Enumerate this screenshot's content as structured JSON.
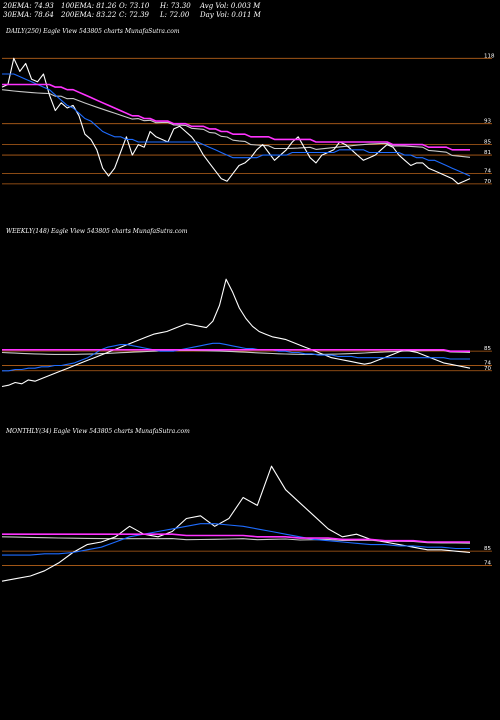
{
  "stats": {
    "ema20": "20EMA: 74.93",
    "ema100": "100EMA: 81.26",
    "open": "O: 73.10",
    "high": "H: 73.30",
    "avgvol": "Avg Vol: 0.003 M",
    "ema30": "30EMA: 78.64",
    "ema200": "200EMA: 83.22",
    "close": "C: 72.39",
    "low": "L: 72.00",
    "dayvol": "Day Vol: 0.011 M"
  },
  "colors": {
    "price": "#ffffff",
    "ema_short": "#1e6cff",
    "ema_long": "#ff33ff",
    "ema_mid": "#c8c8c8",
    "levels": "#b8621a"
  },
  "chart_data": [
    {
      "type": "line",
      "title": "DAILY(250) Eagle  View  543805 charts MunafaSutra.com",
      "y_ticks": [
        "118",
        "93",
        "85",
        "81",
        "74",
        "70"
      ],
      "series": [
        {
          "values": [
            107,
            108,
            118,
            113,
            116,
            110,
            109,
            112,
            104,
            98,
            101,
            99,
            100,
            96,
            89,
            87,
            83,
            76,
            73,
            76,
            82,
            88,
            81,
            85,
            84,
            90,
            88,
            87,
            86,
            91,
            92,
            90,
            88,
            85,
            81,
            78,
            75,
            72,
            71,
            74,
            77,
            78,
            80,
            83,
            85,
            82,
            79,
            81,
            83,
            86,
            88,
            84,
            80,
            78,
            81,
            82,
            83,
            86,
            85,
            83,
            81,
            79,
            80,
            81,
            83,
            85,
            84,
            81,
            79,
            77,
            78,
            78,
            76,
            75,
            74,
            73,
            72,
            70,
            71,
            72
          ]
        },
        {
          "values": [
            112,
            112,
            112,
            111,
            110,
            109,
            108,
            107,
            106,
            104,
            102,
            100,
            99,
            97,
            95,
            94,
            92,
            90,
            89,
            88,
            88,
            87,
            87,
            86,
            86,
            86,
            86,
            86,
            86,
            86,
            86,
            86,
            86,
            86,
            85,
            84,
            83,
            82,
            81,
            80,
            80,
            80,
            80,
            80,
            81,
            81,
            81,
            81,
            81,
            82,
            82,
            82,
            82,
            82,
            82,
            82,
            82,
            83,
            83,
            83,
            83,
            83,
            82,
            82,
            82,
            82,
            82,
            82,
            81,
            81,
            80,
            80,
            79,
            79,
            78,
            77,
            76,
            75,
            74,
            73
          ]
        },
        {
          "values": [
            108,
            108,
            108,
            108,
            108,
            108,
            108,
            108,
            108,
            107,
            107,
            106,
            106,
            105,
            104,
            103,
            102,
            101,
            100,
            99,
            98,
            97,
            96,
            96,
            95,
            95,
            94,
            94,
            94,
            93,
            93,
            93,
            92,
            92,
            92,
            91,
            91,
            90,
            90,
            89,
            89,
            89,
            88,
            88,
            88,
            88,
            87,
            87,
            87,
            87,
            87,
            87,
            87,
            86,
            86,
            86,
            86,
            86,
            86,
            86,
            86,
            86,
            86,
            86,
            86,
            86,
            85,
            85,
            85,
            85,
            85,
            85,
            84,
            84,
            84,
            84,
            83,
            83,
            83,
            83
          ]
        }
      ]
    },
    {
      "type": "line",
      "title": "WEEKLY(148) Eagle  View  543805 charts MunafaSutra.com",
      "y_ticks": [
        "85",
        "74",
        "70"
      ],
      "series": [
        {
          "values": [
            58,
            59,
            61,
            60,
            63,
            62,
            64,
            66,
            68,
            70,
            72,
            74,
            76,
            78,
            80,
            82,
            84,
            86,
            88,
            90,
            92,
            94,
            96,
            98,
            99,
            100,
            102,
            104,
            106,
            105,
            104,
            103,
            108,
            120,
            140,
            130,
            118,
            110,
            104,
            100,
            98,
            96,
            95,
            94,
            92,
            90,
            88,
            86,
            84,
            82,
            80,
            79,
            78,
            77,
            76,
            75,
            76,
            78,
            80,
            82,
            84,
            86,
            85,
            84,
            82,
            80,
            78,
            76,
            75,
            74,
            73,
            72
          ]
        },
        {
          "values": [
            70,
            70,
            71,
            71,
            72,
            72,
            73,
            73,
            74,
            74,
            75,
            76,
            78,
            80,
            83,
            86,
            88,
            89,
            90,
            90,
            89,
            88,
            87,
            86,
            85,
            85,
            85,
            86,
            87,
            88,
            89,
            90,
            91,
            91,
            90,
            89,
            88,
            87,
            87,
            86,
            86,
            86,
            85,
            85,
            84,
            84,
            83,
            83,
            82,
            82,
            82,
            81,
            81,
            81,
            80,
            80,
            80,
            80,
            80,
            80,
            80,
            80,
            80,
            80,
            80,
            80,
            80,
            80,
            79,
            79,
            79,
            79
          ]
        },
        {
          "values": [
            86,
            86,
            86,
            86,
            86,
            86,
            86,
            86,
            86,
            86,
            86,
            86,
            86,
            86,
            86,
            86,
            86,
            86,
            86,
            86,
            86,
            86,
            86,
            86,
            86,
            86,
            86,
            86,
            86,
            86,
            86,
            86,
            86,
            86,
            86,
            86,
            86,
            86,
            86,
            86,
            86,
            86,
            86,
            86,
            86,
            86,
            86,
            86,
            86,
            86,
            86,
            86,
            86,
            86,
            86,
            86,
            86,
            86,
            86,
            86,
            86,
            86,
            86,
            86,
            86,
            86,
            86,
            86,
            85,
            85,
            85,
            85
          ]
        }
      ]
    },
    {
      "type": "line",
      "title": "MONTHLY(34) Eagle  View  543805 charts MunafaSutra.com",
      "y_ticks": [
        "85",
        "74"
      ],
      "series": [
        {
          "values": [
            62,
            64,
            66,
            70,
            76,
            84,
            90,
            92,
            96,
            104,
            98,
            96,
            100,
            110,
            112,
            104,
            110,
            126,
            120,
            150,
            132,
            122,
            112,
            102,
            96,
            98,
            94,
            92,
            90,
            88,
            86,
            86,
            85,
            84
          ]
        },
        {
          "values": [
            82,
            82,
            82,
            83,
            83,
            84,
            86,
            88,
            92,
            96,
            98,
            100,
            102,
            104,
            106,
            106,
            105,
            104,
            102,
            100,
            98,
            96,
            94,
            93,
            92,
            91,
            90,
            90,
            89,
            89,
            88,
            88,
            87,
            87
          ]
        },
        {
          "values": [
            98,
            98,
            98,
            98,
            98,
            98,
            98,
            98,
            98,
            98,
            98,
            98,
            98,
            97,
            97,
            97,
            97,
            97,
            96,
            96,
            96,
            95,
            95,
            95,
            94,
            94,
            94,
            93,
            93,
            93,
            92,
            92,
            92,
            92
          ]
        }
      ]
    }
  ]
}
